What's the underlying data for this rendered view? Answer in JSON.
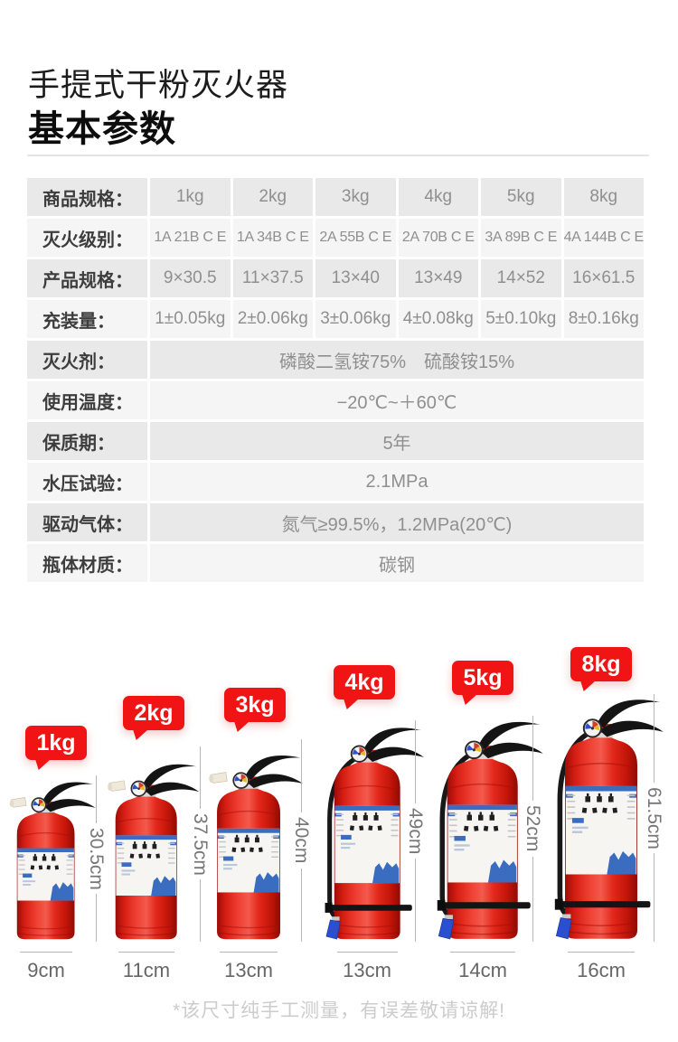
{
  "page": {
    "title_line1": "手提式干粉灭火器",
    "title_line2": "基本参数",
    "footnote": "*该尺寸纯手工测量，有误差敬请谅解!"
  },
  "spec_table": {
    "rows": [
      {
        "label": "商品规格：",
        "values": [
          "1kg",
          "2kg",
          "3kg",
          "4kg",
          "5kg",
          "8kg"
        ]
      },
      {
        "label": "灭火级别：",
        "values": [
          "1A 21B C E",
          "1A 34B C E",
          "2A 55B C E",
          "2A 70B C E",
          "3A 89B C E",
          "4A 144B C E"
        ]
      },
      {
        "label": "产品规格：",
        "values": [
          "9×30.5",
          "11×37.5",
          "13×40",
          "13×49",
          "14×52",
          "16×61.5"
        ]
      },
      {
        "label": "充装量：",
        "values": [
          "1±0.05kg",
          "2±0.06kg",
          "3±0.06kg",
          "4±0.08kg",
          "5±0.10kg",
          "8±0.16kg"
        ]
      },
      {
        "label": "灭火剂：",
        "value": "磷酸二氢铵75%　硫酸铵15%"
      },
      {
        "label": "使用温度：",
        "value": "−20℃~＋60℃"
      },
      {
        "label": "保质期：",
        "value": "5年"
      },
      {
        "label": "水压试验：",
        "value": "2.1MPa"
      },
      {
        "label": "驱动气体：",
        "value": "氮气≥99.5%，1.2MPa(20℃)"
      },
      {
        "label": "瓶体材质：",
        "value": "碳钢"
      }
    ]
  },
  "size_chart": {
    "items": [
      {
        "label": "1kg",
        "height": "30.5cm",
        "width": "9cm"
      },
      {
        "label": "2kg",
        "height": "37.5cm",
        "width": "11cm"
      },
      {
        "label": "3kg",
        "height": "40cm",
        "width": "13cm"
      },
      {
        "label": "4kg",
        "height": "49cm",
        "width": "13cm"
      },
      {
        "label": "5kg",
        "height": "52cm",
        "width": "14cm"
      },
      {
        "label": "8kg",
        "height": "61.5cm",
        "width": "16cm"
      }
    ]
  },
  "colors": {
    "bubble_red": "#f11414",
    "body_red": "#e2231a",
    "label_blue": "#3a6cc0",
    "row_gray": "#e9e9e9",
    "row_light": "#f5f5f5"
  }
}
